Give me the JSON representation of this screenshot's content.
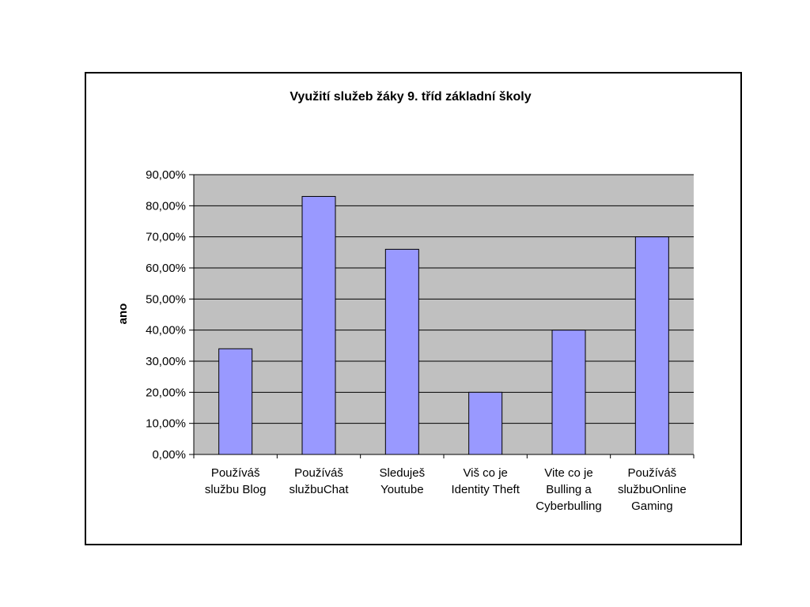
{
  "chart_data": {
    "type": "bar",
    "title": "Využití služeb žáky 9. tříd základní školy",
    "xlabel": "",
    "ylabel": "ano",
    "ylim": [
      0,
      90
    ],
    "y_ticks": [
      "0,00%",
      "10,00%",
      "20,00%",
      "30,00%",
      "40,00%",
      "50,00%",
      "60,00%",
      "70,00%",
      "80,00%",
      "90,00%"
    ],
    "categories": [
      [
        "Používáš",
        "službu Blog"
      ],
      [
        "Používáš",
        "službuChat"
      ],
      [
        "Sleduješ",
        "Youtube"
      ],
      [
        "Viš co je",
        "Identity Theft"
      ],
      [
        "Vite co je",
        "Bulling a",
        "Cyberbulling"
      ],
      [
        "Používáš",
        "službuOnline",
        "Gaming"
      ]
    ],
    "values": [
      34,
      83,
      66,
      20,
      40,
      70
    ],
    "grid": true,
    "legend": "none",
    "colors": {
      "bar": "#9999ff",
      "plot_bg": "#c0c0c0",
      "grid": "#000000"
    }
  }
}
